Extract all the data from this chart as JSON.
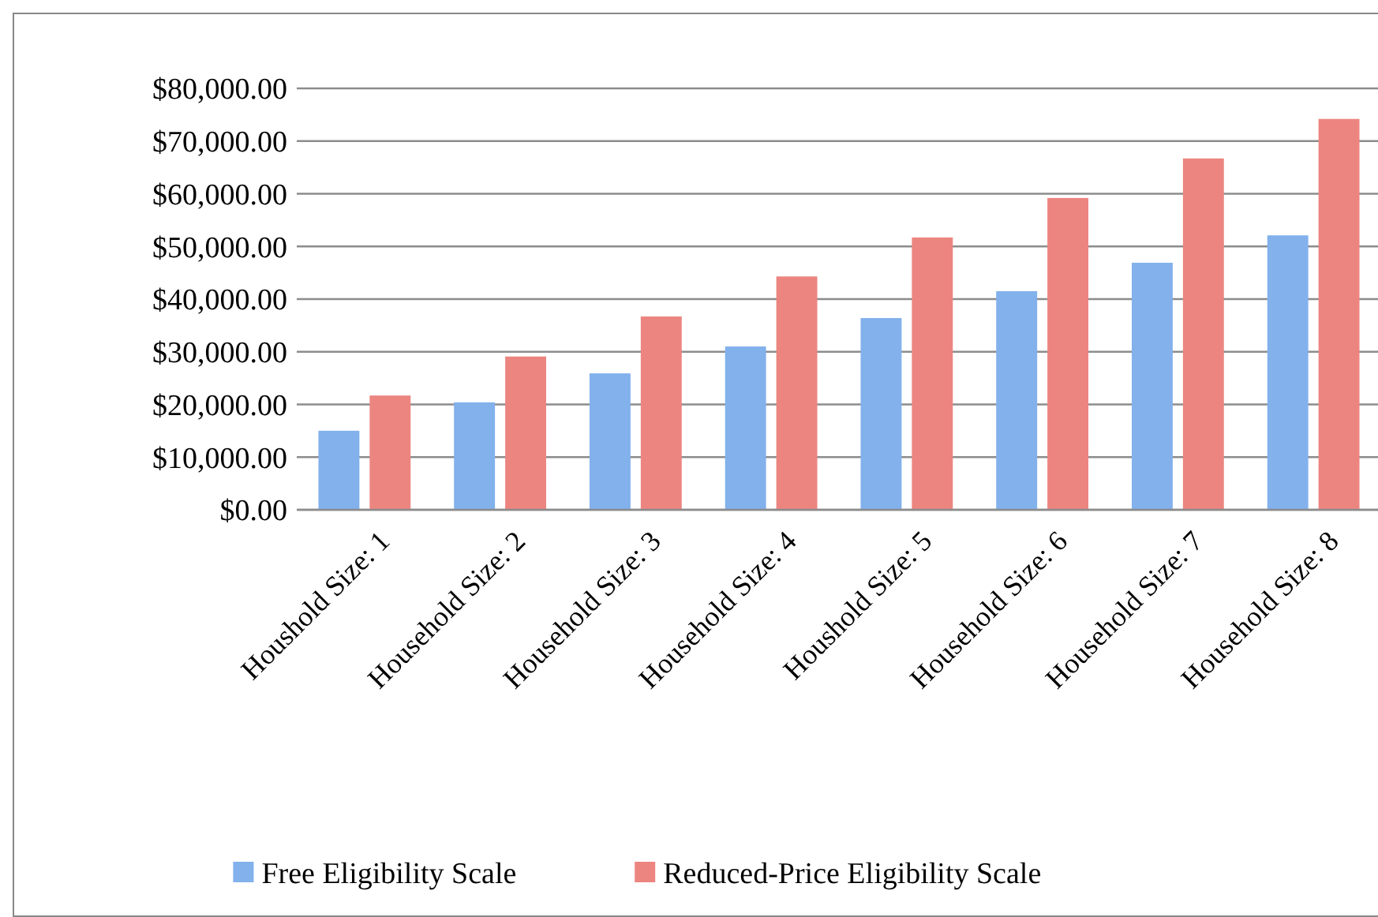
{
  "chart_data": {
    "type": "bar",
    "categories": [
      "Houshold Size: 1",
      "Household Size: 2",
      "Household Size: 3",
      "Household Size: 4",
      "Houshold Size: 5",
      "Household Size: 6",
      "Household Size: 7",
      "Household Size: 8"
    ],
    "series": [
      {
        "name": "Free Eligibility Scale",
        "color": "#82b1ec",
        "values": [
          15000,
          20400,
          25900,
          31000,
          36400,
          41500,
          46900,
          52100
        ]
      },
      {
        "name": "Reduced-Price Eligibility Scale",
        "color": "#ec8580",
        "values": [
          21700,
          29100,
          36700,
          44300,
          51700,
          59200,
          66700,
          74200
        ]
      }
    ],
    "ylim": [
      0,
      80000
    ],
    "yticks": [
      {
        "value": 0,
        "label": "$0.00"
      },
      {
        "value": 10000,
        "label": "$10,000.00"
      },
      {
        "value": 20000,
        "label": "$20,000.00"
      },
      {
        "value": 30000,
        "label": "$30,000.00"
      },
      {
        "value": 40000,
        "label": "$40,000.00"
      },
      {
        "value": 50000,
        "label": "$50,000.00"
      },
      {
        "value": 60000,
        "label": "$60,000.00"
      },
      {
        "value": 70000,
        "label": "$70,000.00"
      },
      {
        "value": 80000,
        "label": "$80,000.00"
      }
    ],
    "grid": "y",
    "legend": "bottom"
  }
}
